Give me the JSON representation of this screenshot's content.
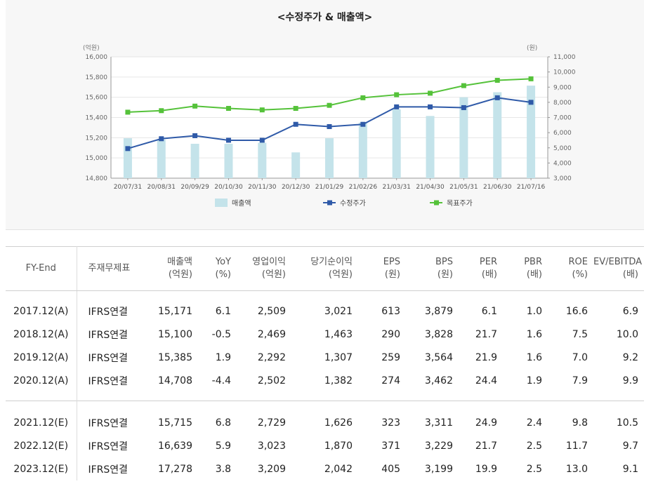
{
  "chart_data": {
    "title": "<수정주가 & 매출액>",
    "type": "bar+line",
    "categories": [
      "20/07/31",
      "20/08/31",
      "20/09/29",
      "20/10/30",
      "20/11/30",
      "20/12/30",
      "21/01/29",
      "21/02/26",
      "21/03/31",
      "21/04/30",
      "21/05/31",
      "21/06/30",
      "21/07/16"
    ],
    "left_axis": {
      "unit": "(억원)",
      "ticks": [
        "16,000",
        "15,800",
        "15,600",
        "15,400",
        "15,200",
        "15,000",
        "14,800"
      ],
      "min": 14800,
      "max": 16000
    },
    "right_axis": {
      "unit": "(원)",
      "ticks": [
        "11,000",
        "10,000",
        "9,000",
        "8,000",
        "7,000",
        "6,000",
        "5,000",
        "4,000",
        "3,000"
      ],
      "min": 3000,
      "max": 11000
    },
    "series": [
      {
        "name": "매출액",
        "kind": "bar",
        "axis": "left",
        "color": "#c4e3ea",
        "values": [
          15195,
          15180,
          15140,
          15140,
          15150,
          15055,
          15195,
          15350,
          15480,
          15415,
          15600,
          15650,
          15715
        ]
      },
      {
        "name": "수정주가",
        "kind": "line",
        "axis": "right",
        "color": "#2f5aa8",
        "values": [
          4950,
          5600,
          5800,
          5500,
          5500,
          6550,
          6400,
          6550,
          7700,
          7700,
          7650,
          8300,
          8000
        ]
      },
      {
        "name": "목표주가",
        "kind": "line",
        "axis": "right",
        "color": "#55c23a",
        "values": [
          7350,
          7450,
          7750,
          7600,
          7500,
          7600,
          7800,
          8300,
          8500,
          8600,
          9100,
          9450,
          9550
        ]
      }
    ]
  },
  "table": {
    "headers": [
      {
        "line1": "FY-End",
        "line2": ""
      },
      {
        "line1": "주재무제표",
        "line2": ""
      },
      {
        "line1": "매출액",
        "line2": "(억원)"
      },
      {
        "line1": "YoY",
        "line2": "(%)"
      },
      {
        "line1": "영업이익",
        "line2": "(억원)"
      },
      {
        "line1": "당기순이익",
        "line2": "(억원)"
      },
      {
        "line1": "EPS",
        "line2": "(원)"
      },
      {
        "line1": "BPS",
        "line2": "(원)"
      },
      {
        "line1": "PER",
        "line2": "(배)"
      },
      {
        "line1": "PBR",
        "line2": "(배)"
      },
      {
        "line1": "ROE",
        "line2": "(%)"
      },
      {
        "line1": "EV/EBITDA",
        "line2": "(배)"
      }
    ],
    "actual_rows": [
      [
        "2017.12(A)",
        "IFRS연결",
        "15,171",
        "6.1",
        "2,509",
        "3,021",
        "613",
        "3,879",
        "6.1",
        "1.0",
        "16.6",
        "6.9"
      ],
      [
        "2018.12(A)",
        "IFRS연결",
        "15,100",
        "-0.5",
        "2,469",
        "1,463",
        "290",
        "3,828",
        "21.7",
        "1.6",
        "7.5",
        "10.0"
      ],
      [
        "2019.12(A)",
        "IFRS연결",
        "15,385",
        "1.9",
        "2,292",
        "1,307",
        "259",
        "3,564",
        "21.9",
        "1.6",
        "7.0",
        "9.2"
      ],
      [
        "2020.12(A)",
        "IFRS연결",
        "14,708",
        "-4.4",
        "2,502",
        "1,382",
        "274",
        "3,462",
        "24.4",
        "1.9",
        "7.9",
        "9.9"
      ]
    ],
    "estimate_rows": [
      [
        "2021.12(E)",
        "IFRS연결",
        "15,715",
        "6.8",
        "2,729",
        "1,626",
        "323",
        "3,311",
        "24.9",
        "2.4",
        "9.8",
        "10.5"
      ],
      [
        "2022.12(E)",
        "IFRS연결",
        "16,639",
        "5.9",
        "3,023",
        "1,870",
        "371",
        "3,229",
        "21.7",
        "2.5",
        "11.7",
        "9.7"
      ],
      [
        "2023.12(E)",
        "IFRS연결",
        "17,278",
        "3.8",
        "3,209",
        "2,042",
        "405",
        "3,199",
        "19.9",
        "2.5",
        "13.0",
        "9.1"
      ]
    ]
  }
}
